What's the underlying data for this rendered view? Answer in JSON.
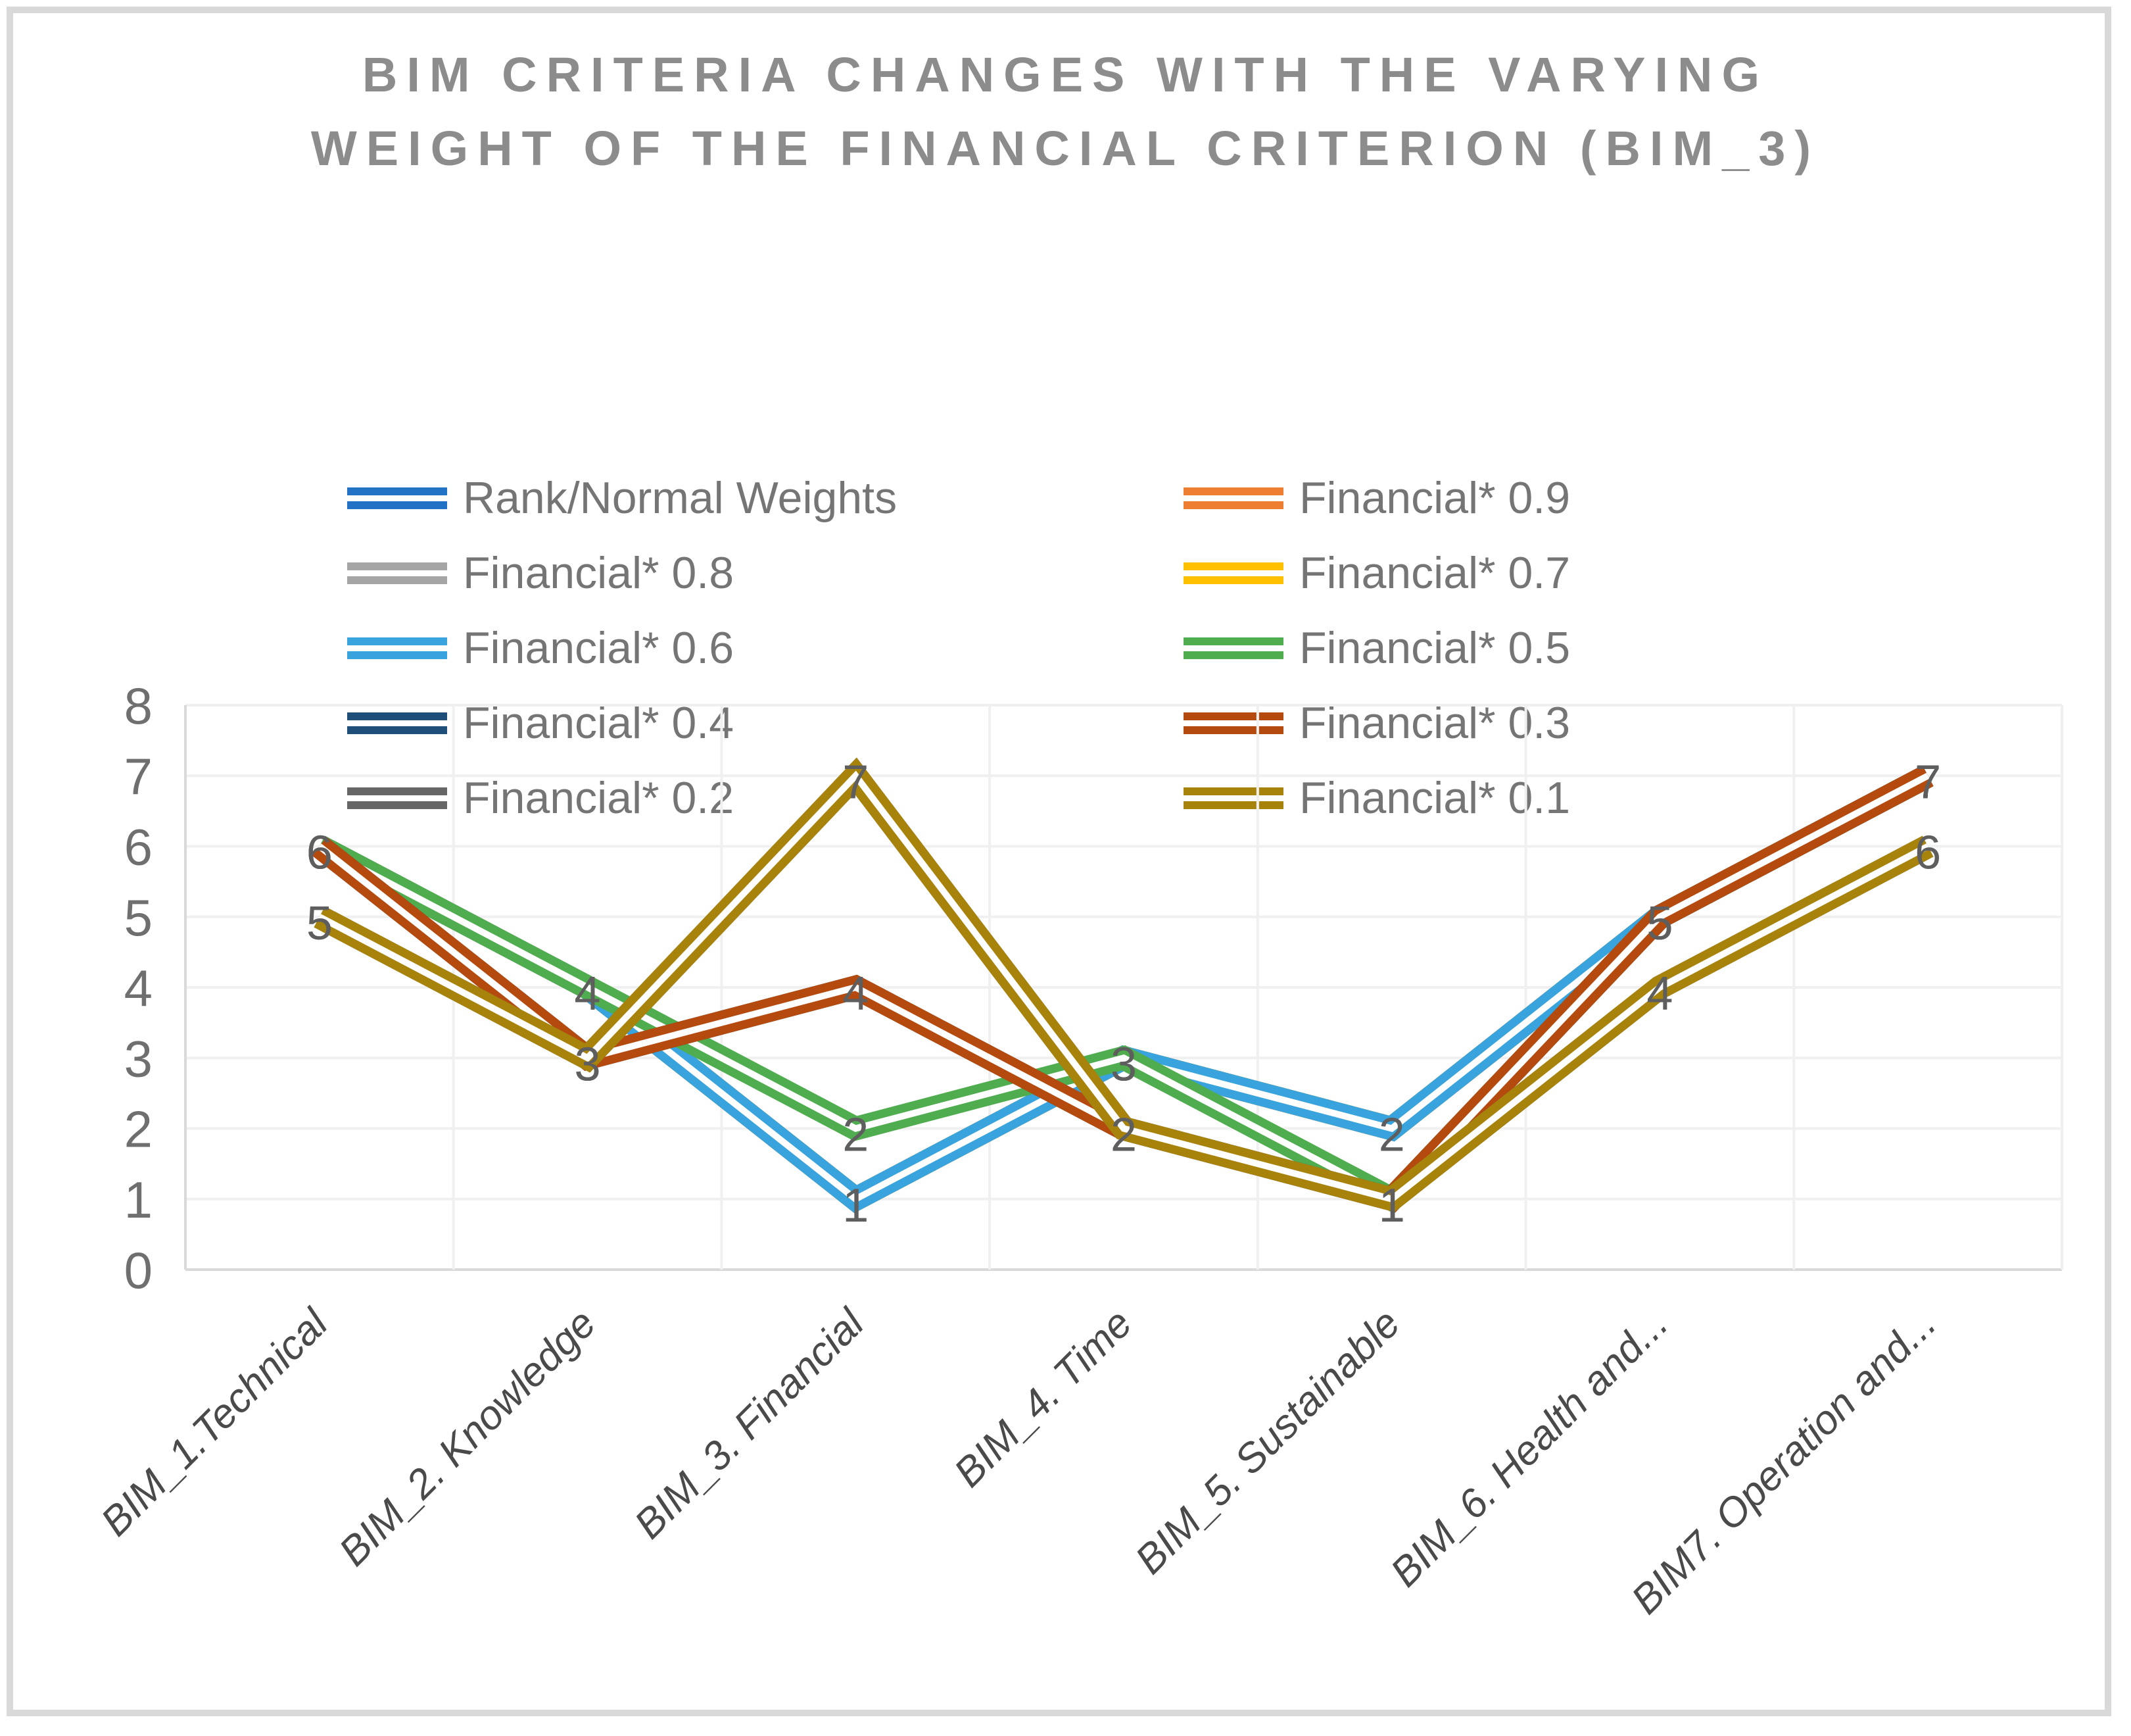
{
  "title": {
    "lines": [
      "BIM CRITERIA CHANGES WITH THE VARYING",
      "WEIGHT OF THE FINANCIAL CRITERION (BIM_3)"
    ]
  },
  "chart_data": {
    "type": "line",
    "line_style": "double-line (each series drawn as two parallel strokes)",
    "title": "BIM CRITERIA CHANGES WITH THE VARYING WEIGHT OF THE FINANCIAL CRITERION (BIM_3)",
    "categories": [
      "BIM_1.Technical",
      "BIM_2. Knowledge",
      "BIM_3. Financial",
      "BIM_4. Time",
      "BIM_5. Sustainable",
      "BIM_6. Health and...",
      "BIM7. Operation and..."
    ],
    "xlabel": "",
    "ylabel": "",
    "ylim": [
      0,
      8
    ],
    "yticks": [
      0,
      1,
      2,
      3,
      4,
      5,
      6,
      7,
      8
    ],
    "grid": true,
    "legend_position": "inside plot, upper area, two columns",
    "series": [
      {
        "name": "Rank/Normal Weights",
        "color": "#2273C6",
        "values": [
          6,
          4,
          1,
          3,
          2,
          5,
          7
        ],
        "show_labels": false
      },
      {
        "name": "Financial* 0.9",
        "color": "#ED7D31",
        "values": [
          6,
          4,
          1,
          3,
          2,
          5,
          7
        ],
        "show_labels": false
      },
      {
        "name": "Financial* 0.8",
        "color": "#A5A5A5",
        "values": [
          6,
          4,
          1,
          3,
          2,
          5,
          7
        ],
        "show_labels": false
      },
      {
        "name": "Financial* 0.7",
        "color": "#FFC000",
        "values": [
          6,
          4,
          1,
          3,
          2,
          5,
          7
        ],
        "show_labels": false
      },
      {
        "name": "Financial* 0.6",
        "color": "#38A3DC",
        "values": [
          6,
          4,
          1,
          3,
          2,
          5,
          7
        ],
        "show_labels": true
      },
      {
        "name": "Financial* 0.5",
        "color": "#4FAD4F",
        "values": [
          6,
          4,
          2,
          3,
          1,
          5,
          7
        ],
        "show_labels": true
      },
      {
        "name": "Financial* 0.4",
        "color": "#1F4E79",
        "values": [
          6,
          3,
          4,
          2,
          1,
          5,
          7
        ],
        "show_labels": false
      },
      {
        "name": "Financial* 0.3",
        "color": "#B54A0E",
        "values": [
          6,
          3,
          4,
          2,
          1,
          5,
          7
        ],
        "show_labels": true
      },
      {
        "name": "Financial* 0.2",
        "color": "#666666",
        "values": [
          5,
          3,
          7,
          2,
          1,
          4,
          6
        ],
        "show_labels": false
      },
      {
        "name": "Financial* 0.1",
        "color": "#A8830B",
        "values": [
          5,
          3,
          7,
          2,
          1,
          4,
          6
        ],
        "show_labels": true
      }
    ],
    "visible_point_labels": {
      "BIM_1.Technical": [
        6,
        5
      ],
      "BIM_2. Knowledge": [
        4,
        3
      ],
      "BIM_3. Financial": [
        7,
        4,
        2,
        1
      ],
      "BIM_4. Time": [
        3,
        2
      ],
      "BIM_5. Sustainable": [
        2,
        1
      ],
      "BIM_6. Health and...": [
        5,
        4
      ],
      "BIM7. Operation and...": [
        7,
        6
      ]
    },
    "style_colors": {
      "title_text": "#8C8C8C",
      "legend_text": "#757575",
      "y_tick_label": "#6F6F6F",
      "category_label": "#4A4A4A",
      "data_label": "#5E5E5E",
      "gridline": "#F0F0F0",
      "axis_line": "#D9D9D9",
      "frame_border": "#D9D9D9",
      "background": "#FFFFFF"
    }
  }
}
